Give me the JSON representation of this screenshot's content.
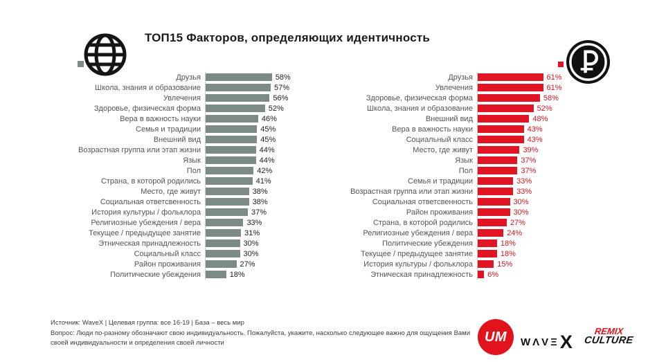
{
  "title": "ТОП15 Факторов, определяющих идентичность",
  "colors": {
    "gray_bar": "#7c8b86",
    "red_bar": "#e01422",
    "red_accent": "#e3131e",
    "black": "#121212",
    "axis_line": "#cdd2d0"
  },
  "icons": {
    "left_group": "globe-icon",
    "right_group": "ruble-coin-icon"
  },
  "chart_data": [
    {
      "type": "bar",
      "orientation": "horizontal",
      "icon": "globe-icon",
      "bar_color": "#7c8b86",
      "unit": "%",
      "xlim": [
        0,
        70
      ],
      "categories": [
        "Друзья",
        "Школа, знания и образование",
        "Увлечения",
        "Здоровье, физическая форма",
        "Вера в важность науки",
        "Семья и традиции",
        "Внешний вид",
        "Возрастная группа или этап жизни",
        "Язык",
        "Пол",
        "Страна, в которой родились",
        "Место, где живут",
        "Социальная ответсвенность",
        "История культуры / фольклора",
        "Религиозные убеждения / вера",
        "Текущее / предыдущее занятие",
        "Этническая принадлежность",
        "Социальный класс",
        "Район проживания",
        "Политические убеждения"
      ],
      "values": [
        58,
        57,
        56,
        52,
        46,
        45,
        45,
        44,
        44,
        42,
        41,
        38,
        38,
        37,
        33,
        31,
        30,
        30,
        27,
        18
      ]
    },
    {
      "type": "bar",
      "orientation": "horizontal",
      "icon": "ruble-coin-icon",
      "bar_color": "#e01422",
      "unit": "%",
      "xlim": [
        0,
        70
      ],
      "categories": [
        "Друзья",
        "Увлечения",
        "Здоровье, физическая форма",
        "Школа, знания и образование",
        "Внешний вид",
        "Вера в важность науки",
        "Социальный класс",
        "Место, где живут",
        "Язык",
        "Пол",
        "Семья и традиции",
        "Возрастная группа или этап жизни",
        "Социальная ответсвенность",
        "Район проживания",
        "Страна, в которой родились",
        "Религиозные убеждения / вера",
        "Политические убеждения",
        "Текущее / предыдущее занятие",
        "История культуры / фольклора",
        "Этническая принадлежность"
      ],
      "values": [
        61,
        61,
        58,
        52,
        48,
        43,
        43,
        39,
        37,
        37,
        33,
        33,
        30,
        30,
        27,
        24,
        18,
        18,
        15,
        6
      ]
    }
  ],
  "footer": {
    "source_line": "Источник:  WaveX | Целевая группа: все 16-19 | База  – весь мир",
    "question_line": "Вопрос: Люди по-разному обозначают свою индивидуальность. Пожалуйста, укажите, насколько следующее важно для ощущения Вами своей индивидуальности и определения своей личности"
  },
  "logos": {
    "um": "UM",
    "wavex_letters": "WΛVΞ",
    "wavex_x": "X",
    "remix_top": "REMIX",
    "remix_bottom": "CULTURE"
  }
}
